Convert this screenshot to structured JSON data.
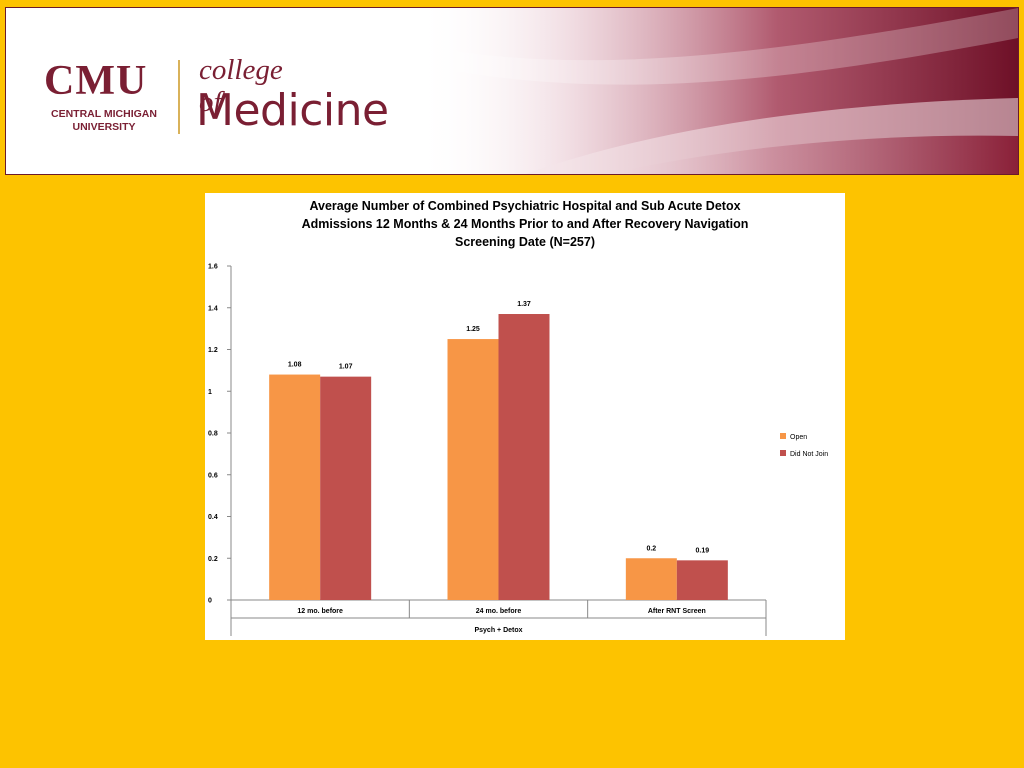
{
  "header": {
    "logo_main": "CMU",
    "logo_sub_line1": "CENTRAL MICHIGAN",
    "logo_sub_line2": "UNIVERSITY",
    "college_of": "college of",
    "medicine": "Medicine",
    "colors": {
      "maroon": "#7a1f33",
      "gold": "#FDC300",
      "divider": "#d9b25a"
    }
  },
  "chart_data": {
    "type": "bar",
    "title_lines": [
      "Average Number of Combined  Psychiatric Hospital and Sub Acute Detox",
      "Admissions 12 Months  & 24 Months Prior to and After Recovery Navigation",
      "Screening Date (N=257)"
    ],
    "categories": [
      "12 mo. before",
      "24 mo. before",
      "After RNT Screen"
    ],
    "group_label": "Psych + Detox",
    "series": [
      {
        "name": "Open",
        "color": "#F79646",
        "values": [
          1.08,
          1.25,
          0.2
        ],
        "labels": [
          "1.08",
          "1.25",
          "0.2"
        ]
      },
      {
        "name": "Did Not Join",
        "color": "#C0504D",
        "values": [
          1.07,
          1.37,
          0.19
        ],
        "labels": [
          "1.07",
          "1.37",
          "0.19"
        ]
      }
    ],
    "ylim": [
      0,
      1.6
    ],
    "yticks": [
      {
        "v": 0,
        "label": "0"
      },
      {
        "v": 0.2,
        "label": "0.2"
      },
      {
        "v": 0.4,
        "label": "0.4"
      },
      {
        "v": 0.6,
        "label": "0.6"
      },
      {
        "v": 0.8,
        "label": "0.8"
      },
      {
        "v": 1,
        "label": "1"
      },
      {
        "v": 1.2,
        "label": "1.2"
      },
      {
        "v": 1.4,
        "label": "1.4"
      },
      {
        "v": 1.6,
        "label": "1.6"
      }
    ],
    "legend_position": "right"
  }
}
